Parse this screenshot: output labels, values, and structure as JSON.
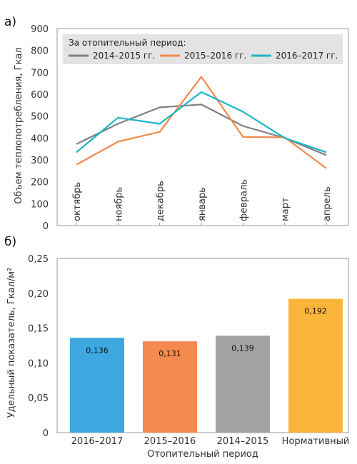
{
  "chart_data": [
    {
      "type": "line",
      "panel_label": "а)",
      "ylabel": "Объем теплопотребления, Гкал",
      "ylim": [
        0,
        900
      ],
      "yticks": [
        0,
        100,
        200,
        300,
        400,
        500,
        600,
        700,
        800,
        900
      ],
      "categories": [
        "октябрь",
        "ноябрь",
        "декабрь",
        "январь",
        "февраль",
        "март",
        "апрель"
      ],
      "legend_title": "За отопительный период:",
      "legend_position": "top",
      "grid": false,
      "series": [
        {
          "name": "2014–2015 гг.",
          "color": "#808080",
          "values": [
            372,
            465,
            540,
            553,
            455,
            400,
            322
          ]
        },
        {
          "name": "2015–2016 гг.",
          "color": "#f08a4b",
          "values": [
            278,
            383,
            428,
            680,
            405,
            403,
            262
          ]
        },
        {
          "name": "2016–2017 гг.",
          "color": "#1bb5c9",
          "values": [
            335,
            493,
            465,
            610,
            520,
            400,
            335
          ]
        }
      ]
    },
    {
      "type": "bar",
      "panel_label": "б)",
      "ylabel": "Удельный показатель, Гкал/м²",
      "xlabel": "Отопительный период",
      "ylim": [
        0,
        0.25
      ],
      "yticks": [
        "0",
        "0,05",
        "0,10",
        "0,15",
        "0,20",
        "0,25"
      ],
      "grid": false,
      "categories": [
        "2016–2017",
        "2015–2016",
        "2014–2015",
        "Нормативный"
      ],
      "values": [
        0.136,
        0.131,
        0.139,
        0.192
      ],
      "value_labels": [
        "0,136",
        "0,131",
        "0,139",
        "0,192"
      ],
      "colors": [
        "#3ea8e0",
        "#f58a4e",
        "#a3a3a6",
        "#fbb43a"
      ]
    }
  ]
}
